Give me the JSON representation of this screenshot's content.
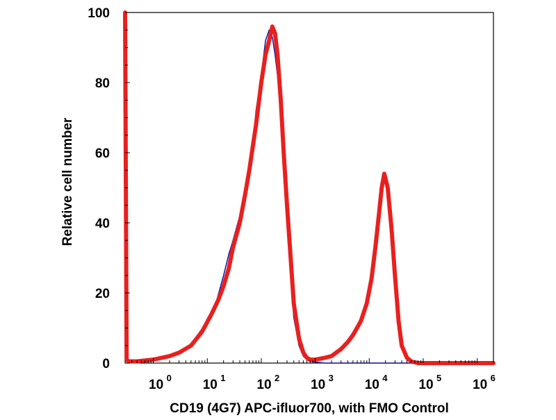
{
  "chart_data": {
    "type": "line",
    "title": "",
    "xlabel": "CD19 (4G7) APC-ifluor700, with FMO Control",
    "ylabel": "Relative cell number",
    "x_scale": "log",
    "xlim": [
      0.3,
      2000000
    ],
    "ylim": [
      0,
      100
    ],
    "yticks": [
      0,
      20,
      40,
      60,
      80,
      100
    ],
    "xticks": [
      {
        "value": 1,
        "base": "10",
        "exp": "0"
      },
      {
        "value": 10,
        "base": "10",
        "exp": "1"
      },
      {
        "value": 100,
        "base": "10",
        "exp": "2"
      },
      {
        "value": 1000,
        "base": "10",
        "exp": "3"
      },
      {
        "value": 10000,
        "base": "10",
        "exp": "4"
      },
      {
        "value": 100000,
        "base": "10",
        "exp": "5"
      },
      {
        "value": 1000000,
        "base": "10",
        "exp": "6"
      }
    ],
    "grid": false,
    "legend": "none",
    "series": [
      {
        "color": "#1a1aa8",
        "x": [
          0.3,
          0.32,
          0.35,
          0.5,
          1,
          2,
          4,
          6,
          10,
          15,
          20,
          25,
          30,
          40,
          50,
          60,
          70,
          80,
          100,
          120,
          140,
          160,
          180,
          200,
          230,
          260,
          300,
          350,
          400,
          500,
          600,
          700,
          800,
          1000,
          1500,
          2000,
          5000,
          20000,
          100000,
          2000000
        ],
        "y": [
          100,
          1,
          0.5,
          0.5,
          1,
          2,
          4,
          7,
          12,
          18,
          25,
          31,
          35,
          42,
          48,
          55,
          62,
          72,
          82,
          92,
          95,
          93,
          88,
          82,
          70,
          55,
          40,
          25,
          13,
          5,
          2,
          1,
          0.5,
          0.3,
          0,
          0,
          0,
          0,
          0,
          0
        ]
      },
      {
        "color": "#e8201e",
        "x": [
          0.3,
          0.32,
          0.35,
          0.5,
          1,
          2,
          3,
          5,
          8,
          12,
          16,
          20,
          25,
          30,
          40,
          50,
          60,
          70,
          80,
          100,
          120,
          140,
          160,
          180,
          200,
          230,
          260,
          300,
          350,
          400,
          500,
          600,
          700,
          800,
          1000,
          1500,
          2000,
          3000,
          4000,
          5000,
          7000,
          9000,
          11000,
          13000,
          15000,
          17000,
          19000,
          22000,
          26000,
          30000,
          35000,
          40000,
          50000,
          60000,
          80000,
          100000,
          300000,
          1000000,
          2000000
        ],
        "y": [
          100,
          1,
          0.5,
          0.5,
          1,
          2,
          3,
          5,
          9,
          14,
          18,
          22,
          27,
          33,
          40,
          48,
          55,
          62,
          68,
          80,
          88,
          92,
          96,
          94,
          88,
          75,
          60,
          45,
          30,
          17,
          7,
          3,
          1.5,
          1,
          1,
          1.5,
          2,
          4,
          6,
          8,
          12,
          17,
          24,
          33,
          42,
          50,
          54,
          50,
          38,
          25,
          12,
          5,
          1.5,
          0.5,
          0,
          0,
          0,
          0,
          0
        ]
      }
    ]
  }
}
